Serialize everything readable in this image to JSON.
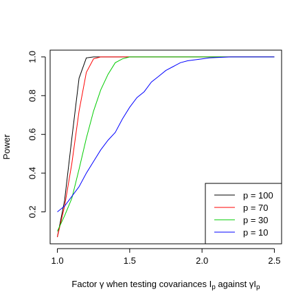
{
  "chart_data": {
    "type": "line",
    "title": "",
    "ylabel": "Power",
    "xlabel_parts": [
      "Factor γ when testing covariances I",
      "p",
      " against γI",
      "p"
    ],
    "xlim": [
      0.95,
      2.55
    ],
    "ylim": [
      0.035,
      1.035
    ],
    "xticks": [
      1.0,
      1.5,
      2.0,
      2.5
    ],
    "xtick_labels": [
      "1.0",
      "1.5",
      "2.0",
      "2.5"
    ],
    "yticks": [
      0.2,
      0.4,
      0.6,
      0.8,
      1.0
    ],
    "ytick_labels": [
      "0.2",
      "0.4",
      "0.6",
      "0.8",
      "1.0"
    ],
    "grid": false,
    "legend_position": "bottom-right",
    "series": [
      {
        "name": "p = 100",
        "color": "#000000",
        "x": [
          1.0,
          1.05,
          1.1,
          1.15,
          1.2,
          1.25,
          1.3,
          1.35,
          1.4,
          2.5
        ],
        "y": [
          0.07,
          0.26,
          0.58,
          0.89,
          0.995,
          1.0,
          1.0,
          1.0,
          1.0,
          1.0
        ]
      },
      {
        "name": "p = 70",
        "color": "#ff0000",
        "x": [
          1.0,
          1.05,
          1.1,
          1.15,
          1.2,
          1.25,
          1.3,
          1.35,
          1.4,
          2.5
        ],
        "y": [
          0.07,
          0.23,
          0.45,
          0.72,
          0.92,
          0.99,
          1.0,
          1.0,
          1.0,
          1.0
        ]
      },
      {
        "name": "p = 30",
        "color": "#00cc00",
        "x": [
          1.0,
          1.05,
          1.1,
          1.15,
          1.2,
          1.25,
          1.3,
          1.35,
          1.4,
          1.45,
          1.5,
          1.55,
          2.5
        ],
        "y": [
          0.1,
          0.18,
          0.27,
          0.42,
          0.58,
          0.72,
          0.83,
          0.91,
          0.97,
          0.99,
          1.0,
          1.0,
          1.0
        ]
      },
      {
        "name": "p = 10",
        "color": "#0000ff",
        "x": [
          1.0,
          1.05,
          1.1,
          1.15,
          1.2,
          1.25,
          1.3,
          1.35,
          1.4,
          1.45,
          1.5,
          1.55,
          1.6,
          1.65,
          1.7,
          1.75,
          1.8,
          1.85,
          1.9,
          1.95,
          2.0,
          2.05,
          2.1,
          2.2,
          2.3,
          2.4,
          2.5
        ],
        "y": [
          0.2,
          0.23,
          0.28,
          0.33,
          0.4,
          0.46,
          0.52,
          0.57,
          0.61,
          0.68,
          0.74,
          0.79,
          0.82,
          0.87,
          0.9,
          0.93,
          0.95,
          0.97,
          0.98,
          0.985,
          0.99,
          0.995,
          0.997,
          1.0,
          1.0,
          1.0,
          1.0
        ]
      }
    ]
  }
}
